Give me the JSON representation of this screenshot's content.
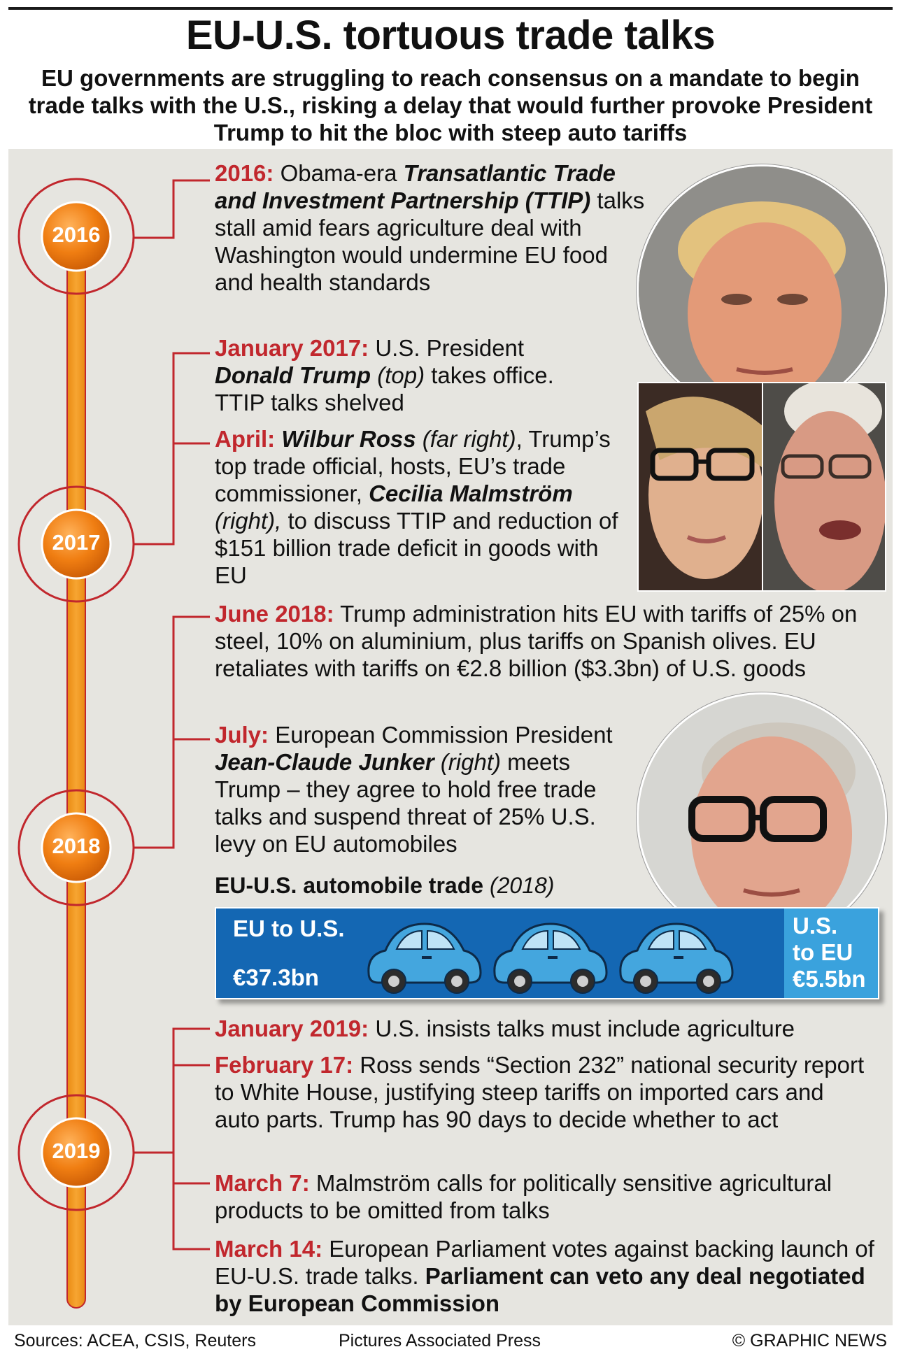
{
  "header": {
    "title": "EU-U.S. tortuous trade talks",
    "subtitle": "EU governments are struggling to reach consensus on a mandate to begin trade talks with the U.S., risking a delay that would further provoke President Trump to hit the bloc with steep auto tariffs"
  },
  "years": [
    "2016",
    "2017",
    "2018",
    "2019"
  ],
  "entries": {
    "e2016": {
      "label": "2016:",
      "pre": "Obama-era",
      "bold": "Transatlantic Trade and Investment Partnership (TTIP)",
      "rest": "talks stall amid fears agriculture deal with Washington would undermine EU food and health standards"
    },
    "jan2017": {
      "label": "January 2017:",
      "pre": "U.S. President",
      "bold": "Donald Trump",
      "it": "(top)",
      "rest": "takes office. TTIP talks shelved"
    },
    "apr2017": {
      "label": "April:",
      "bold1": "Wilbur Ross",
      "it1": "(far right)",
      "mid": ", Trump’s top trade official, hosts, EU’s trade commissioner,",
      "bold2": "Cecilia Malmström",
      "it2": "(right),",
      "rest": "to discuss TTIP and reduction of $151 billion trade deficit in goods with EU"
    },
    "jun2018": {
      "label": "June 2018:",
      "rest": "Trump administration hits EU with tariffs of 25% on steel, 10% on aluminium, plus tariffs on Spanish olives. EU retaliates with tariffs on €2.8 billion ($3.3bn) of U.S. goods"
    },
    "jul2018": {
      "label": "July:",
      "pre": "European Commission President",
      "bold": "Jean-Claude Junker",
      "it": "(right)",
      "rest": "meets Trump – they agree to hold free trade talks and suspend threat of 25% U.S. levy on EU automobiles"
    },
    "jan2019": {
      "label": "January 2019:",
      "rest": "U.S. insists talks must include agriculture"
    },
    "feb2019": {
      "label": "February 17:",
      "rest": "Ross sends “Section 232” national security report to White House, justifying steep tariffs on imported cars and auto parts. Trump has 90 days to decide whether to act"
    },
    "mar7": {
      "label": "March 7:",
      "rest": "Malmström calls for politically sensitive agricultural products to be omitted from talks"
    },
    "mar14": {
      "label": "March 14:",
      "rest": "European Parliament votes against backing launch of EU-U.S. trade talks.",
      "bold": "Parliament can veto any deal negotiated by European Commission"
    }
  },
  "auto": {
    "title": "EU-U.S. automobile trade",
    "year": "(2018)",
    "eu_to_us_label": "EU to U.S.",
    "eu_to_us_value": "€37.3bn",
    "us_to_eu_label_1": "U.S.",
    "us_to_eu_label_2": "to EU",
    "us_to_eu_value": "€5.5bn",
    "car_count": 3
  },
  "footer": {
    "sources": "Sources: ACEA, CSIS, Reuters",
    "pictures": "Pictures Associated Press",
    "credit": "© GRAPHIC NEWS"
  },
  "colors": {
    "accent_red": "#c1272d",
    "timeline_orange": "#f39a1e",
    "box_blue": "#1467b3",
    "box_light_blue": "#3aa2dd",
    "car_blue": "#44a6de",
    "panel_bg": "#e6e5e0"
  },
  "photos": [
    "donald-trump-photo",
    "cecilia-malmstrom-photo",
    "wilbur-ross-photo",
    "jean-claude-junker-photo"
  ]
}
